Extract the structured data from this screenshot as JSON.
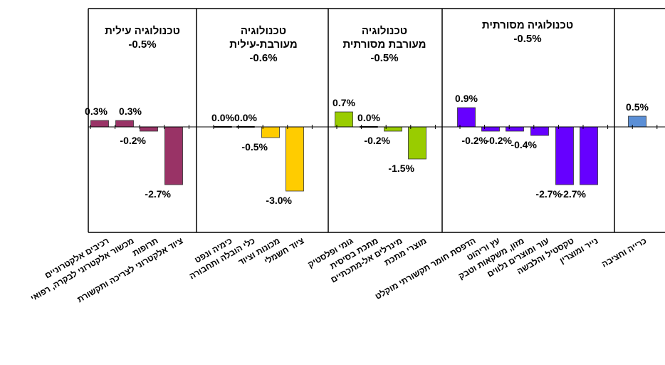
{
  "chart_data": {
    "type": "bar",
    "title": "",
    "xlabel": "",
    "ylabel": "",
    "ylim": [
      -3.5,
      1.5
    ],
    "grid": false,
    "legend": "none",
    "groups": [
      {
        "title_lines": [
          "טכנולוגיה עילית"
        ],
        "value_label": "-0.5%",
        "color": "#993366",
        "categories": [
          "רכיבים אלקטרוניים",
          "מכשור אלקטרוני לבקרה, רפואי",
          "תרופות",
          "ציוד אלקטרוני לצריכה ותקשורת"
        ],
        "values": [
          0.3,
          0.3,
          -0.2,
          -2.7
        ],
        "labels": [
          "0.3%",
          "0.3%",
          "-0.2%",
          "-2.7%"
        ]
      },
      {
        "title_lines": [
          "טכנולוגיה",
          "מעורבת-עילית"
        ],
        "value_label": "-0.6%",
        "color": "#ffcc00",
        "categories": [
          "כימיה ונפט",
          "כלי הובלה ותחבורה",
          "מכונות וציוד",
          "ציוד חשמלי"
        ],
        "values": [
          0.0,
          0.0,
          -0.5,
          -3.0
        ],
        "labels": [
          "0.0%",
          "0.0%",
          "-0.5%",
          "-3.0%"
        ]
      },
      {
        "title_lines": [
          "טכנולוגיה",
          "מעורבת מסורתית"
        ],
        "value_label": "-0.5%",
        "color": "#99cc00",
        "categories": [
          "גומי ופלסטיק",
          "מתכת בסיסית",
          "מינרלים אל-מתכתיים",
          "מוצרי מתכת"
        ],
        "values": [
          0.7,
          0.0,
          -0.2,
          -1.5
        ],
        "labels": [
          "0.7%",
          "0.0%",
          "-0.2%",
          "-1.5%"
        ]
      },
      {
        "title_lines": [
          "טכנולוגיה מסורתית"
        ],
        "value_label": "-0.5%",
        "color": "#6600ff",
        "categories": [
          "הדפסת חומר תקשורתי מוקלט",
          "עץ וריהוט",
          "מזון, משקאות וטבק",
          "עור ומוצרים נלווים",
          "טקסטיל והלבשה",
          "נייר ומוצרין"
        ],
        "values": [
          0.9,
          -0.2,
          -0.2,
          -0.4,
          -2.7,
          -2.7
        ],
        "labels": [
          "0.9%",
          "-0.2%",
          "-0.2%",
          "-0.4%",
          "-2.7%",
          "-2.7%"
        ]
      },
      {
        "title_lines": [],
        "value_label": "",
        "color": "#5b8fd6",
        "categories": [
          "כרייה וחציבה"
        ],
        "values": [
          0.5
        ],
        "labels": [
          "0.5%"
        ]
      }
    ]
  }
}
